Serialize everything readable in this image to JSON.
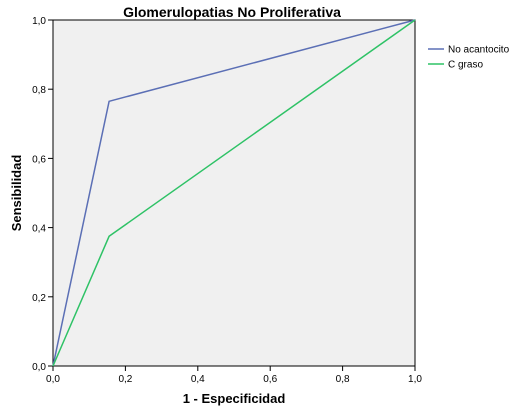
{
  "chart_data": {
    "type": "line",
    "title": "Glomerulopatias No Proliferativa",
    "xlabel": "1 - Especificidad",
    "ylabel": "Sensibilidad",
    "xlim": [
      0,
      1
    ],
    "ylim": [
      0,
      1
    ],
    "xticks": [
      "0,0",
      "0,2",
      "0,4",
      "0,6",
      "0,8",
      "1,0"
    ],
    "yticks": [
      "0,0",
      "0,2",
      "0,4",
      "0,6",
      "0,8",
      "1,0"
    ],
    "xtick_values": [
      0,
      0.2,
      0.4,
      0.6,
      0.8,
      1.0
    ],
    "ytick_values": [
      0,
      0.2,
      0.4,
      0.6,
      0.8,
      1.0
    ],
    "grid": false,
    "plot_background": "#f0f0f0",
    "legend_position": "right",
    "series": [
      {
        "name": "No acantocito",
        "color": "#5b6fb5",
        "x": [
          0,
          0.155,
          1.0
        ],
        "y": [
          0,
          0.765,
          1.0
        ]
      },
      {
        "name": "C graso",
        "color": "#2ec266",
        "x": [
          0,
          0.155,
          1.0
        ],
        "y": [
          0,
          0.375,
          1.0
        ]
      }
    ]
  }
}
